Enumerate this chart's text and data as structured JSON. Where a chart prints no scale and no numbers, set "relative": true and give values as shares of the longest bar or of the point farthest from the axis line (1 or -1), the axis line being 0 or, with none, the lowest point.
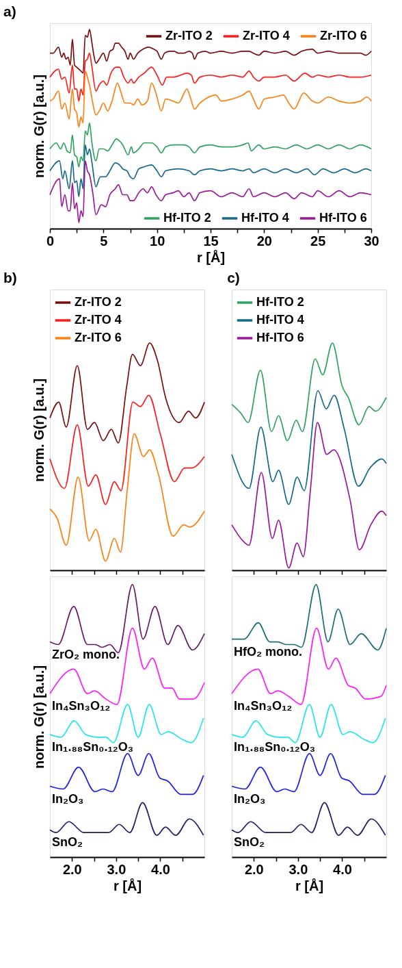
{
  "chart_data": [
    {
      "type": "line",
      "title": "a)",
      "xlabel": "r [Å]",
      "ylabel": "norm. G(r) [a.u.]",
      "relative": true,
      "tick_labels": "x",
      "legend": [
        "top right",
        "bottom right"
      ],
      "xlim": [
        0,
        30
      ],
      "xticks": [
        0,
        {
          "value": 2.5,
          "label": null
        },
        5,
        {
          "value": 7.5,
          "label": null
        },
        10,
        {
          "value": 12.5,
          "label": null
        },
        15,
        {
          "value": 17.5,
          "label": null
        },
        20,
        {
          "value": 22.5,
          "label": null
        },
        25,
        {
          "value": 27.5,
          "label": null
        },
        30
      ],
      "series": [
        {
          "name": "Zr-ITO 2",
          "color": "#7a0c0c",
          "x": [
            0,
            0.3,
            0.8,
            1.1,
            1.3,
            1.5,
            1.7,
            1.9,
            2.1,
            2.3,
            2.5,
            2.7,
            2.9,
            3.1,
            3.3,
            3.5,
            3.7,
            3.9,
            4.1,
            4.3,
            4.6,
            5.0,
            5.3,
            5.6,
            5.9,
            6.1,
            6.4,
            6.7,
            7.0,
            7.3,
            7.5,
            7.8,
            8.2,
            8.7,
            9.2,
            9.7,
            10.0,
            10.4,
            10.7,
            11.2,
            11.6,
            12.0,
            12.5,
            13.0,
            13.3,
            13.5,
            13.8,
            14.5,
            15,
            16,
            17,
            18,
            18.6,
            19,
            19.5,
            20,
            21,
            22,
            22.8,
            23.5,
            24.5,
            25,
            26,
            27,
            28,
            29,
            29.5,
            30
          ],
          "values": [
            0.88,
            0.88,
            0.91,
            0.86,
            0.88,
            0.85,
            0.86,
            0.82,
            0.95,
            0.82,
            0.81,
            0.8,
            0.79,
            0.78,
            0.97,
            0.96,
            1.0,
            0.94,
            0.87,
            0.83,
            0.85,
            0.88,
            0.84,
            0.89,
            0.9,
            0.93,
            0.93,
            0.91,
            0.89,
            0.85,
            0.88,
            0.85,
            0.88,
            0.9,
            0.91,
            0.9,
            0.89,
            0.85,
            0.88,
            0.89,
            0.89,
            0.88,
            0.88,
            0.89,
            0.88,
            0.85,
            0.88,
            0.89,
            0.88,
            0.89,
            0.88,
            0.89,
            0.89,
            0.88,
            0.87,
            0.89,
            0.88,
            0.89,
            0.87,
            0.89,
            0.9,
            0.88,
            0.89,
            0.88,
            0.88,
            0.88,
            0.87,
            0.89
          ]
        },
        {
          "name": "Zr-ITO 4",
          "color": "#ff1a1a",
          "x": [
            0,
            0.8,
            1.1,
            1.4,
            1.8,
            2.1,
            2.3,
            2.5,
            2.7,
            2.9,
            3.1,
            3.3,
            3.5,
            3.7,
            3.9,
            4.3,
            4.6,
            5.0,
            5.3,
            5.7,
            6.2,
            6.5,
            6.9,
            7.3,
            7.6,
            7.8,
            8.3,
            8.8,
            9.5,
            10.0,
            10.5,
            10.9,
            11.5,
            12.2,
            12.8,
            13.2,
            13.5,
            14,
            15,
            16,
            17,
            18,
            18.6,
            19,
            19.5,
            20,
            21,
            22,
            22.8,
            23.8,
            24.5,
            25,
            26,
            27,
            28,
            29,
            30
          ],
          "values": [
            0.76,
            0.8,
            0.75,
            0.76,
            0.68,
            0.82,
            0.7,
            0.7,
            0.64,
            0.7,
            0.67,
            0.84,
            0.85,
            0.88,
            0.82,
            0.69,
            0.72,
            0.74,
            0.72,
            0.78,
            0.81,
            0.81,
            0.76,
            0.73,
            0.75,
            0.73,
            0.76,
            0.78,
            0.81,
            0.77,
            0.72,
            0.76,
            0.76,
            0.77,
            0.78,
            0.77,
            0.73,
            0.76,
            0.77,
            0.76,
            0.77,
            0.76,
            0.79,
            0.76,
            0.74,
            0.76,
            0.76,
            0.77,
            0.74,
            0.78,
            0.76,
            0.77,
            0.76,
            0.77,
            0.76,
            0.76,
            0.77
          ]
        },
        {
          "name": "Zr-ITO 6",
          "color": "#ff8010",
          "x": [
            0,
            0.3,
            0.8,
            1.1,
            1.4,
            1.8,
            2.1,
            2.3,
            2.5,
            2.7,
            2.9,
            3.1,
            3.3,
            3.5,
            3.7,
            4.0,
            4.3,
            4.7,
            5.0,
            5.4,
            5.8,
            6.3,
            6.6,
            7.0,
            7.5,
            7.8,
            8.2,
            8.6,
            9.1,
            9.5,
            9.9,
            10.4,
            10.8,
            11.5,
            12.0,
            12.8,
            13.1,
            13.5,
            14,
            14.5,
            15.5,
            16,
            17,
            18,
            18.6,
            19.0,
            19.5,
            20,
            21,
            21.8,
            22.3,
            22.8,
            23.7,
            24.5,
            25,
            26,
            27,
            28,
            29,
            29.6,
            30
          ],
          "values": [
            0.64,
            0.65,
            0.69,
            0.6,
            0.63,
            0.55,
            0.7,
            0.6,
            0.58,
            0.51,
            0.56,
            0.53,
            0.79,
            0.76,
            0.72,
            0.63,
            0.57,
            0.6,
            0.63,
            0.59,
            0.64,
            0.73,
            0.69,
            0.63,
            0.63,
            0.62,
            0.65,
            0.62,
            0.64,
            0.73,
            0.68,
            0.59,
            0.65,
            0.64,
            0.63,
            0.7,
            0.66,
            0.6,
            0.63,
            0.65,
            0.67,
            0.64,
            0.65,
            0.67,
            0.69,
            0.65,
            0.6,
            0.65,
            0.66,
            0.67,
            0.63,
            0.6,
            0.68,
            0.64,
            0.63,
            0.66,
            0.64,
            0.63,
            0.64,
            0.66,
            0.64
          ]
        },
        {
          "name": "Hf-ITO 2",
          "color": "#2ea35e",
          "x": [
            0,
            0.6,
            1.0,
            1.3,
            1.6,
            1.9,
            2.1,
            2.3,
            2.5,
            2.7,
            2.9,
            3.1,
            3.3,
            3.5,
            3.7,
            3.9,
            4.3,
            4.6,
            5.0,
            5.4,
            5.8,
            6.2,
            6.5,
            6.8,
            7.3,
            7.6,
            7.8,
            8.3,
            8.8,
            9.5,
            10.0,
            10.4,
            10.8,
            11.5,
            12.5,
            13.0,
            13.5,
            14,
            15,
            16,
            17,
            18,
            18.5,
            18.8,
            19.5,
            20,
            21,
            22,
            23,
            24,
            25,
            26,
            27,
            28,
            29,
            30
          ],
          "values": [
            0.4,
            0.43,
            0.4,
            0.43,
            0.39,
            0.38,
            0.47,
            0.37,
            0.36,
            0.31,
            0.36,
            0.34,
            0.49,
            0.47,
            0.53,
            0.44,
            0.34,
            0.4,
            0.4,
            0.39,
            0.42,
            0.45,
            0.44,
            0.42,
            0.37,
            0.41,
            0.38,
            0.4,
            0.43,
            0.43,
            0.41,
            0.38,
            0.41,
            0.42,
            0.42,
            0.41,
            0.38,
            0.41,
            0.42,
            0.41,
            0.41,
            0.42,
            0.43,
            0.39,
            0.42,
            0.4,
            0.41,
            0.4,
            0.42,
            0.4,
            0.42,
            0.4,
            0.42,
            0.4,
            0.42,
            0.4
          ]
        },
        {
          "name": "Hf-ITO 4",
          "color": "#15688c",
          "x": [
            0,
            0.9,
            1.2,
            1.4,
            1.8,
            2.1,
            2.3,
            2.5,
            2.7,
            2.9,
            3.1,
            3.3,
            3.5,
            3.7,
            3.9,
            4.3,
            4.7,
            5.2,
            5.6,
            6.1,
            6.5,
            6.8,
            7.2,
            7.5,
            7.8,
            8.3,
            8.8,
            9.5,
            10.0,
            10.4,
            10.8,
            12,
            13,
            13.5,
            14,
            15,
            16,
            17,
            18,
            18.6,
            19,
            20,
            21,
            22,
            23,
            24,
            24.7,
            25.5,
            26.5,
            27.5,
            28.5,
            29.5,
            30
          ],
          "values": [
            0.29,
            0.34,
            0.25,
            0.29,
            0.2,
            0.34,
            0.23,
            0.24,
            0.16,
            0.25,
            0.2,
            0.42,
            0.37,
            0.4,
            0.34,
            0.21,
            0.26,
            0.26,
            0.29,
            0.33,
            0.32,
            0.3,
            0.29,
            0.26,
            0.25,
            0.3,
            0.31,
            0.32,
            0.29,
            0.26,
            0.29,
            0.3,
            0.29,
            0.27,
            0.29,
            0.3,
            0.29,
            0.3,
            0.29,
            0.3,
            0.28,
            0.3,
            0.28,
            0.3,
            0.28,
            0.3,
            0.27,
            0.3,
            0.28,
            0.3,
            0.28,
            0.3,
            0.29
          ]
        },
        {
          "name": "Hf-ITO 6",
          "color": "#9b169b",
          "x": [
            0,
            0.9,
            1.1,
            1.4,
            1.7,
            1.9,
            2.1,
            2.3,
            2.5,
            2.7,
            2.9,
            3.1,
            3.3,
            3.5,
            3.7,
            4.0,
            4.3,
            4.8,
            5.2,
            5.6,
            6.1,
            6.4,
            6.8,
            7.2,
            7.5,
            7.8,
            8.3,
            8.7,
            9.1,
            9.5,
            9.9,
            10.4,
            10.8,
            11.5,
            12.0,
            12.5,
            13,
            13.5,
            14,
            15,
            16,
            17,
            18,
            18.6,
            19,
            20,
            21,
            22,
            22.8,
            23.5,
            24.5,
            25,
            26,
            27,
            28,
            29,
            30
          ],
          "values": [
            0.17,
            0.25,
            0.11,
            0.17,
            0.09,
            0.09,
            0.23,
            0.1,
            0.13,
            0.03,
            0.09,
            0.06,
            0.34,
            0.29,
            0.27,
            0.18,
            0.07,
            0.12,
            0.11,
            0.17,
            0.2,
            0.22,
            0.17,
            0.17,
            0.14,
            0.14,
            0.18,
            0.2,
            0.18,
            0.21,
            0.17,
            0.14,
            0.17,
            0.18,
            0.19,
            0.16,
            0.18,
            0.14,
            0.18,
            0.19,
            0.16,
            0.18,
            0.16,
            0.2,
            0.16,
            0.18,
            0.16,
            0.18,
            0.15,
            0.18,
            0.16,
            0.19,
            0.16,
            0.19,
            0.16,
            0.18,
            0.17
          ]
        }
      ]
    },
    {
      "type": "line",
      "title": "b)",
      "ylabel": "norm. G(r) [a.u.]",
      "relative": true,
      "tick_labels": false,
      "legend": "top left",
      "xlim": [
        1.5,
        5.0
      ],
      "xticks": [
        2,
        2.5,
        3,
        3.5,
        4,
        4.5
      ],
      "series": [
        {
          "name": "Zr-ITO 2",
          "color": "#7a0c0c",
          "x": [
            1.5,
            1.7,
            1.87,
            2.12,
            2.35,
            2.51,
            2.71,
            2.89,
            3.05,
            3.24,
            3.37,
            3.55,
            3.76,
            3.94,
            4.12,
            4.43,
            4.64,
            4.8,
            5.0
          ],
          "values": [
            0.67,
            0.74,
            0.63,
            0.9,
            0.62,
            0.65,
            0.57,
            0.62,
            0.56,
            0.81,
            0.95,
            0.9,
            1.0,
            0.92,
            0.76,
            0.65,
            0.7,
            0.67,
            0.74
          ]
        },
        {
          "name": "Zr-ITO 4",
          "color": "#ff1a1a",
          "x": [
            1.5,
            1.83,
            2.12,
            2.37,
            2.54,
            2.76,
            2.96,
            3.11,
            3.38,
            3.55,
            3.74,
            4.0,
            4.32,
            4.55,
            4.71,
            5.0
          ],
          "values": [
            0.49,
            0.36,
            0.64,
            0.37,
            0.42,
            0.29,
            0.39,
            0.35,
            0.74,
            0.72,
            0.77,
            0.6,
            0.39,
            0.45,
            0.45,
            0.5
          ]
        },
        {
          "name": "Zr-ITO 6",
          "color": "#ff8010",
          "x": [
            1.5,
            1.66,
            1.87,
            2.14,
            2.39,
            2.54,
            2.76,
            2.96,
            3.1,
            3.25,
            3.41,
            3.62,
            3.76,
            3.96,
            4.29,
            4.53,
            4.67,
            5.0
          ],
          "values": [
            0.27,
            0.23,
            0.11,
            0.41,
            0.13,
            0.18,
            0.04,
            0.14,
            0.08,
            0.35,
            0.6,
            0.5,
            0.53,
            0.42,
            0.15,
            0.2,
            0.19,
            0.26
          ]
        }
      ]
    },
    {
      "type": "line",
      "xlabel": "r [Å]",
      "ylabel": "norm. G(r) [a.u.]",
      "relative": true,
      "tick_labels": "x",
      "xlim": [
        1.5,
        5.0
      ],
      "xticks": [
        {
          "value": 2,
          "label": "2.0"
        },
        {
          "value": 2.5,
          "label": null
        },
        {
          "value": 3,
          "label": "3.0"
        },
        {
          "value": 3.5,
          "label": null
        },
        {
          "value": 4,
          "label": "4.0"
        },
        {
          "value": 4.5,
          "label": null
        }
      ],
      "series": [
        {
          "name": "ZrO₂ mono.",
          "color": "#6a1a6a",
          "x": [
            1.5,
            1.69,
            2.04,
            2.35,
            2.53,
            2.68,
            2.86,
            3.05,
            3.37,
            3.61,
            3.88,
            4.17,
            4.4,
            4.73,
            5.0
          ],
          "values": [
            0.79,
            0.78,
            0.92,
            0.78,
            0.78,
            0.77,
            0.78,
            0.75,
            1.0,
            0.8,
            0.92,
            0.78,
            0.85,
            0.76,
            0.82
          ]
        },
        {
          "name": "In₄Sn₃O₁₂",
          "color": "#ff1aff",
          "x": [
            1.5,
            2.04,
            2.35,
            2.51,
            2.77,
            3.02,
            3.37,
            3.64,
            3.82,
            4.1,
            4.27,
            4.43,
            4.75,
            5.0
          ],
          "values": [
            0.6,
            0.69,
            0.6,
            0.61,
            0.58,
            0.56,
            0.84,
            0.69,
            0.73,
            0.62,
            0.62,
            0.58,
            0.58,
            0.64
          ]
        },
        {
          "name": "In₁.₈₈Sn₀.₁₂O₃",
          "color": "#22e6ee",
          "x": [
            1.5,
            1.75,
            2.05,
            2.31,
            2.58,
            2.77,
            2.94,
            3.26,
            3.5,
            3.75,
            4.02,
            4.18,
            4.52,
            4.7,
            4.98
          ],
          "values": [
            0.45,
            0.44,
            0.5,
            0.45,
            0.44,
            0.44,
            0.42,
            0.56,
            0.44,
            0.56,
            0.45,
            0.46,
            0.43,
            0.42,
            0.51
          ]
        },
        {
          "name": "In₂O₃",
          "color": "#1c1cf0",
          "x": [
            1.5,
            1.8,
            2.15,
            2.52,
            2.7,
            2.91,
            3.26,
            3.5,
            3.74,
            3.99,
            4.16,
            4.47,
            4.73,
            4.98
          ],
          "values": [
            0.26,
            0.25,
            0.33,
            0.24,
            0.25,
            0.24,
            0.38,
            0.3,
            0.38,
            0.29,
            0.28,
            0.23,
            0.23,
            0.3
          ]
        },
        {
          "name": "SnO₂",
          "color": "#1c1c6c",
          "x": [
            1.5,
            1.64,
            1.93,
            2.27,
            2.83,
            3.07,
            3.31,
            3.6,
            3.92,
            4.12,
            4.35,
            4.66,
            4.98
          ],
          "values": [
            0.1,
            0.09,
            0.13,
            0.09,
            0.09,
            0.12,
            0.09,
            0.2,
            0.08,
            0.11,
            0.08,
            0.14,
            0.08
          ]
        }
      ]
    },
    {
      "type": "line",
      "title": "c)",
      "relative": true,
      "tick_labels": false,
      "legend": "top left",
      "xlim": [
        1.5,
        5.0
      ],
      "xticks": [
        2,
        2.5,
        3,
        3.5,
        4,
        4.5
      ],
      "series": [
        {
          "name": "Hf-ITO 2",
          "color": "#2ea35e",
          "x": [
            1.5,
            1.71,
            1.87,
            2.15,
            2.4,
            2.56,
            2.76,
            2.96,
            3.1,
            3.39,
            3.56,
            3.78,
            4.0,
            4.14,
            4.38,
            4.61,
            4.76,
            5.0
          ],
          "values": [
            0.73,
            0.69,
            0.65,
            0.88,
            0.61,
            0.68,
            0.57,
            0.66,
            0.61,
            0.93,
            0.86,
            1.0,
            0.81,
            0.76,
            0.64,
            0.72,
            0.7,
            0.76
          ]
        },
        {
          "name": "Hf-ITO 4",
          "color": "#15688c",
          "x": [
            1.5,
            1.89,
            2.16,
            2.43,
            2.56,
            2.79,
            2.98,
            3.14,
            3.45,
            3.64,
            3.82,
            4.05,
            4.37,
            4.63,
            4.9,
            5.0
          ],
          "values": [
            0.51,
            0.36,
            0.63,
            0.39,
            0.44,
            0.29,
            0.41,
            0.35,
            0.79,
            0.71,
            0.77,
            0.62,
            0.37,
            0.45,
            0.49,
            0.47
          ]
        },
        {
          "name": "Hf-ITO 6",
          "color": "#9b169b",
          "x": [
            1.5,
            1.75,
            1.89,
            2.17,
            2.42,
            2.56,
            2.79,
            2.98,
            3.12,
            3.28,
            3.44,
            3.65,
            3.81,
            4.18,
            4.39,
            4.65,
            4.9,
            5.0
          ],
          "values": [
            0.2,
            0.13,
            0.11,
            0.43,
            0.14,
            0.22,
            0.01,
            0.12,
            0.06,
            0.35,
            0.65,
            0.51,
            0.53,
            0.31,
            0.09,
            0.2,
            0.26,
            0.24
          ]
        }
      ]
    },
    {
      "type": "line",
      "xlabel": "r [Å]",
      "relative": true,
      "tick_labels": "x",
      "xlim": [
        1.5,
        5.0
      ],
      "xticks": [
        {
          "value": 2,
          "label": "2.0"
        },
        {
          "value": 2.5,
          "label": null
        },
        {
          "value": 3,
          "label": "3.0"
        },
        {
          "value": 3.5,
          "label": null
        },
        {
          "value": 4,
          "label": "4.0"
        },
        {
          "value": 4.5,
          "label": null
        }
      ],
      "series": [
        {
          "name": "HfO₂ mono.",
          "color": "#1d6e70",
          "x": [
            1.5,
            1.78,
            2.1,
            2.36,
            2.54,
            2.73,
            2.91,
            3.08,
            3.41,
            3.68,
            3.91,
            4.18,
            4.43,
            4.81,
            5.0
          ],
          "values": [
            0.8,
            0.8,
            0.86,
            0.79,
            0.79,
            0.78,
            0.78,
            0.77,
            1.0,
            0.79,
            0.91,
            0.78,
            0.82,
            0.76,
            0.84
          ]
        },
        {
          "name": "In₄Sn₃O₁₂",
          "color": "#ff1aff",
          "x": [
            1.5,
            2.09,
            2.38,
            2.54,
            2.79,
            3.07,
            3.42,
            3.69,
            3.86,
            4.14,
            4.3,
            4.53,
            4.88,
            5.0
          ],
          "values": [
            0.6,
            0.69,
            0.6,
            0.61,
            0.59,
            0.56,
            0.84,
            0.69,
            0.73,
            0.63,
            0.62,
            0.58,
            0.59,
            0.63
          ]
        },
        {
          "name": "In₁.₈₈Sn₀.₁₂O₃",
          "color": "#22e6ee",
          "x": [
            1.5,
            1.75,
            2.05,
            2.31,
            2.58,
            2.77,
            2.94,
            3.26,
            3.5,
            3.75,
            4.02,
            4.18,
            4.52,
            4.7,
            4.98
          ],
          "values": [
            0.45,
            0.44,
            0.5,
            0.45,
            0.44,
            0.44,
            0.42,
            0.56,
            0.44,
            0.56,
            0.45,
            0.46,
            0.43,
            0.42,
            0.51
          ]
        },
        {
          "name": "In₂O₃",
          "color": "#1c1cf0",
          "x": [
            1.5,
            1.8,
            2.15,
            2.52,
            2.7,
            2.91,
            3.26,
            3.5,
            3.74,
            3.99,
            4.16,
            4.47,
            4.73,
            4.98
          ],
          "values": [
            0.26,
            0.25,
            0.33,
            0.24,
            0.25,
            0.24,
            0.38,
            0.3,
            0.38,
            0.29,
            0.28,
            0.23,
            0.23,
            0.3
          ]
        },
        {
          "name": "SnO₂",
          "color": "#1c1c6c",
          "x": [
            1.5,
            1.64,
            1.93,
            2.27,
            2.83,
            3.07,
            3.31,
            3.6,
            3.92,
            4.12,
            4.35,
            4.66,
            4.98
          ],
          "values": [
            0.1,
            0.09,
            0.13,
            0.09,
            0.09,
            0.12,
            0.09,
            0.2,
            0.08,
            0.11,
            0.08,
            0.14,
            0.08
          ]
        }
      ]
    }
  ]
}
